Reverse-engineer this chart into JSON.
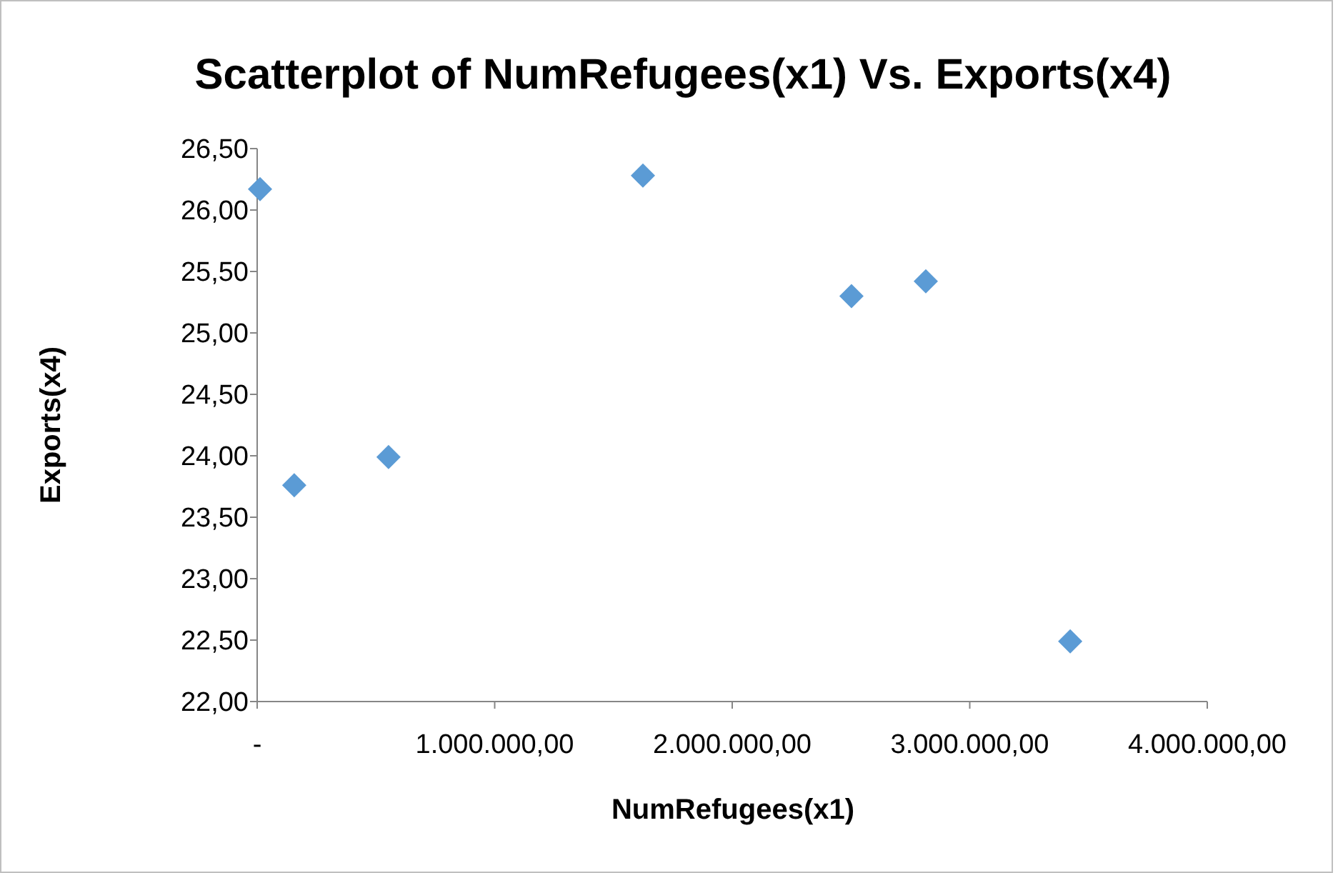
{
  "chart_data": {
    "type": "scatter",
    "title": "Scatterplot of NumRefugees(x1) Vs. Exports(x4)",
    "xlabel": "NumRefugees(x1)",
    "ylabel": "Exports(x4)",
    "x": [
      12000,
      156000,
      553000,
      1624000,
      2502000,
      2815000,
      3423000
    ],
    "series": [
      {
        "color": "#5b9bd5",
        "values": [
          26.17,
          23.76,
          23.99,
          26.28,
          25.3,
          25.42,
          22.49
        ]
      }
    ],
    "xlim": [
      0,
      4000000
    ],
    "xticks": [
      {
        "value": 0,
        "label": "-"
      },
      {
        "value": 1000000,
        "label": "1.000.000,00"
      },
      {
        "value": 2000000,
        "label": "2.000.000,00"
      },
      {
        "value": 3000000,
        "label": "3.000.000,00"
      },
      {
        "value": 4000000,
        "label": "4.000.000,00"
      }
    ],
    "ylim": [
      22,
      26.5
    ],
    "yticks": [
      {
        "value": 22,
        "label": "22,00"
      },
      {
        "value": 22.5,
        "label": "22,50"
      },
      {
        "value": 23,
        "label": "23,00"
      },
      {
        "value": 23.5,
        "label": "23,50"
      },
      {
        "value": 24,
        "label": "24,00"
      },
      {
        "value": 24.5,
        "label": "24,50"
      },
      {
        "value": 25,
        "label": "25,00"
      },
      {
        "value": 25.5,
        "label": "25,50"
      },
      {
        "value": 26,
        "label": "26,00"
      },
      {
        "value": 26.5,
        "label": "26,50"
      }
    ],
    "marker": "diamond"
  }
}
